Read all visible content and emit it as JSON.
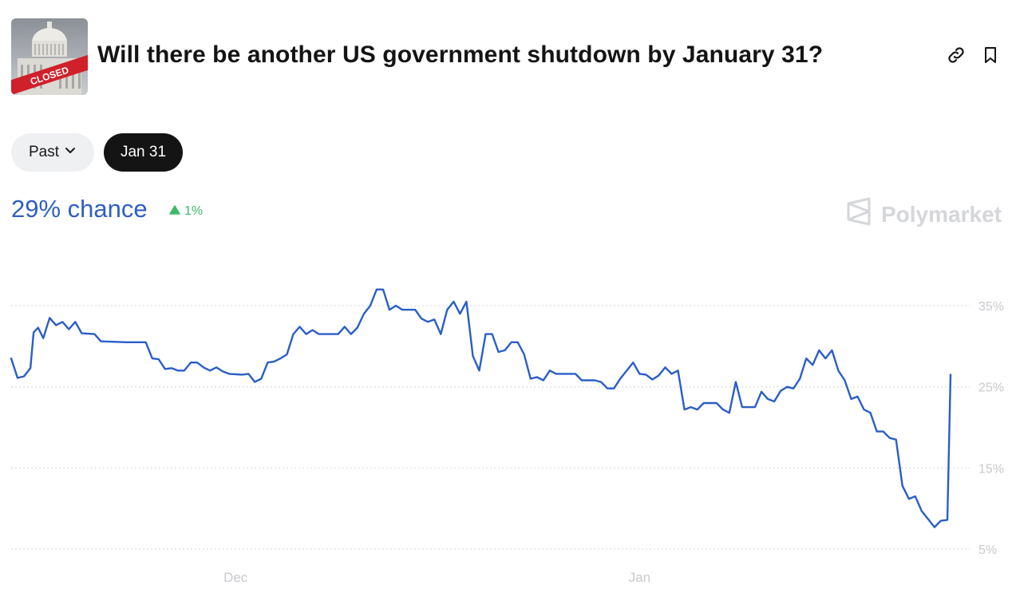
{
  "market": {
    "title": "Will there be another US government shutdown by January 31?",
    "thumbnail_text": "CLOSED"
  },
  "actions": {
    "link_icon": "link-icon",
    "bookmark_icon": "bookmark-icon"
  },
  "filters": {
    "past_label": "Past",
    "date_label": "Jan 31"
  },
  "summary": {
    "chance": "29% chance",
    "change": "1%",
    "change_color": "#3fb96b"
  },
  "brand": {
    "name": "Polymarket"
  },
  "colors": {
    "line": "#2a5ec6",
    "grid": "#dcdee1",
    "accent": "#2f5ec4"
  },
  "chart_data": {
    "type": "line",
    "title": "",
    "xlabel": "",
    "ylabel": "",
    "ylim": [
      5,
      40
    ],
    "yticks": [
      5,
      15,
      25,
      35
    ],
    "ytick_labels": [
      "5%",
      "15%",
      "25%",
      "35%"
    ],
    "xticks": [
      {
        "label": "Dec",
        "x": 35
      },
      {
        "label": "Jan",
        "x": 98
      }
    ],
    "grid": true,
    "series": [
      {
        "values": [
          [
            0,
            28.5
          ],
          [
            1,
            26.1
          ],
          [
            2,
            26.3
          ],
          [
            3,
            27.3
          ],
          [
            3.5,
            31.7
          ],
          [
            4.2,
            32.3
          ],
          [
            5,
            31.0
          ],
          [
            6,
            33.5
          ],
          [
            7,
            32.6
          ],
          [
            8,
            33.0
          ],
          [
            9,
            32.1
          ],
          [
            10,
            33.0
          ],
          [
            11,
            31.6
          ],
          [
            13,
            31.5
          ],
          [
            14,
            30.6
          ],
          [
            18,
            30.5
          ],
          [
            21,
            30.5
          ],
          [
            22,
            28.5
          ],
          [
            23,
            28.4
          ],
          [
            24,
            27.2
          ],
          [
            25,
            27.3
          ],
          [
            26,
            27.0
          ],
          [
            27,
            27.0
          ],
          [
            28,
            28.0
          ],
          [
            29,
            28.0
          ],
          [
            30,
            27.4
          ],
          [
            31,
            27.0
          ],
          [
            32,
            27.4
          ],
          [
            33,
            26.9
          ],
          [
            34,
            26.6
          ],
          [
            36,
            26.5
          ],
          [
            37,
            26.6
          ],
          [
            38,
            25.6
          ],
          [
            39,
            26.0
          ],
          [
            40,
            28.0
          ],
          [
            41,
            28.1
          ],
          [
            42,
            28.5
          ],
          [
            43,
            29.0
          ],
          [
            44,
            31.5
          ],
          [
            45,
            32.4
          ],
          [
            46,
            31.5
          ],
          [
            47,
            32.0
          ],
          [
            48,
            31.5
          ],
          [
            51,
            31.5
          ],
          [
            52,
            32.4
          ],
          [
            53,
            31.5
          ],
          [
            54,
            32.3
          ],
          [
            55,
            34.0
          ],
          [
            56,
            35.0
          ],
          [
            57,
            37.0
          ],
          [
            58,
            37.0
          ],
          [
            59,
            34.5
          ],
          [
            60,
            35.0
          ],
          [
            61,
            34.5
          ],
          [
            63,
            34.5
          ],
          [
            64,
            33.4
          ],
          [
            65,
            33.0
          ],
          [
            66,
            33.3
          ],
          [
            67,
            31.5
          ],
          [
            68,
            34.5
          ],
          [
            69,
            35.5
          ],
          [
            70,
            34.0
          ],
          [
            71,
            35.5
          ],
          [
            72,
            28.8
          ],
          [
            73,
            27.0
          ],
          [
            74,
            31.5
          ],
          [
            75,
            31.5
          ],
          [
            76,
            29.3
          ],
          [
            77,
            29.5
          ],
          [
            78,
            30.5
          ],
          [
            79,
            30.5
          ],
          [
            80,
            29.0
          ],
          [
            81,
            26.0
          ],
          [
            82,
            26.2
          ],
          [
            83,
            25.8
          ],
          [
            84,
            27.0
          ],
          [
            85,
            26.6
          ],
          [
            86,
            26.6
          ],
          [
            88,
            26.6
          ],
          [
            89,
            25.8
          ],
          [
            91,
            25.8
          ],
          [
            92,
            25.6
          ],
          [
            93,
            24.8
          ],
          [
            94,
            24.8
          ],
          [
            95,
            26.0
          ],
          [
            96,
            27.0
          ],
          [
            97,
            28.0
          ],
          [
            98,
            26.6
          ],
          [
            99,
            26.5
          ],
          [
            100,
            25.9
          ],
          [
            101,
            26.4
          ],
          [
            102,
            27.4
          ],
          [
            103,
            26.6
          ],
          [
            104,
            27.0
          ],
          [
            105,
            22.2
          ],
          [
            106,
            22.5
          ],
          [
            107,
            22.2
          ],
          [
            108,
            23.0
          ],
          [
            110,
            23.0
          ],
          [
            111,
            22.2
          ],
          [
            112,
            21.8
          ],
          [
            113,
            25.6
          ],
          [
            114,
            22.5
          ],
          [
            116,
            22.5
          ],
          [
            117,
            24.4
          ],
          [
            118,
            23.5
          ],
          [
            119,
            23.2
          ],
          [
            120,
            24.5
          ],
          [
            121,
            25.0
          ],
          [
            122,
            24.8
          ],
          [
            123,
            26.0
          ],
          [
            124,
            28.5
          ],
          [
            125,
            27.7
          ],
          [
            126,
            29.5
          ],
          [
            127,
            28.5
          ],
          [
            128,
            29.5
          ],
          [
            129,
            27.0
          ],
          [
            130,
            25.8
          ],
          [
            131,
            23.5
          ],
          [
            132,
            23.8
          ],
          [
            133,
            22.2
          ],
          [
            134,
            21.8
          ],
          [
            135,
            19.5
          ],
          [
            136,
            19.5
          ],
          [
            137,
            18.7
          ],
          [
            138,
            18.5
          ],
          [
            139,
            12.8
          ],
          [
            140,
            11.2
          ],
          [
            141,
            11.5
          ],
          [
            142,
            9.7
          ],
          [
            143,
            8.7
          ],
          [
            144,
            7.7
          ],
          [
            145,
            8.5
          ],
          [
            146,
            8.6
          ],
          [
            146.5,
            26.5
          ]
        ]
      }
    ]
  }
}
